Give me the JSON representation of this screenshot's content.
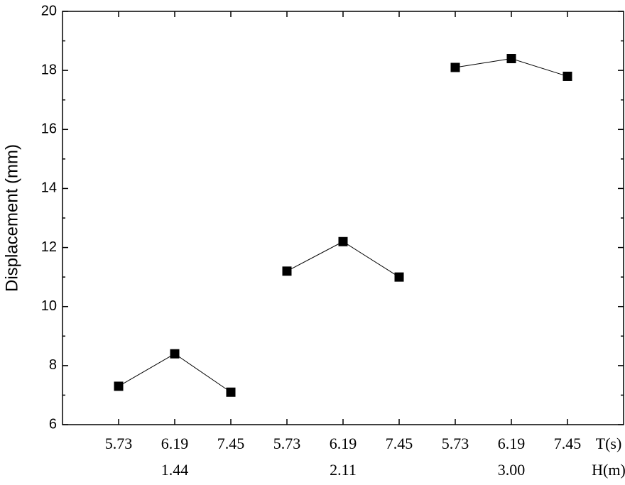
{
  "chart_data": {
    "type": "line",
    "y_label": "Displacement (mm)",
    "x_label": "T(s)",
    "group_label": "H(m)",
    "categories": [
      "5.73",
      "6.19",
      "7.45",
      "5.73",
      "6.19",
      "7.45",
      "5.73",
      "6.19",
      "7.45"
    ],
    "groups": [
      "1.44",
      "2.11",
      "3.00"
    ],
    "series": [
      {
        "name": "Displacement",
        "color": "#000000",
        "values": [
          7.3,
          8.4,
          7.1,
          11.2,
          12.2,
          11.0,
          18.1,
          18.4,
          17.8
        ]
      }
    ],
    "ylim": [
      6,
      20
    ],
    "yticks": [
      6,
      8,
      10,
      12,
      14,
      16,
      18,
      20
    ],
    "grid": false
  }
}
